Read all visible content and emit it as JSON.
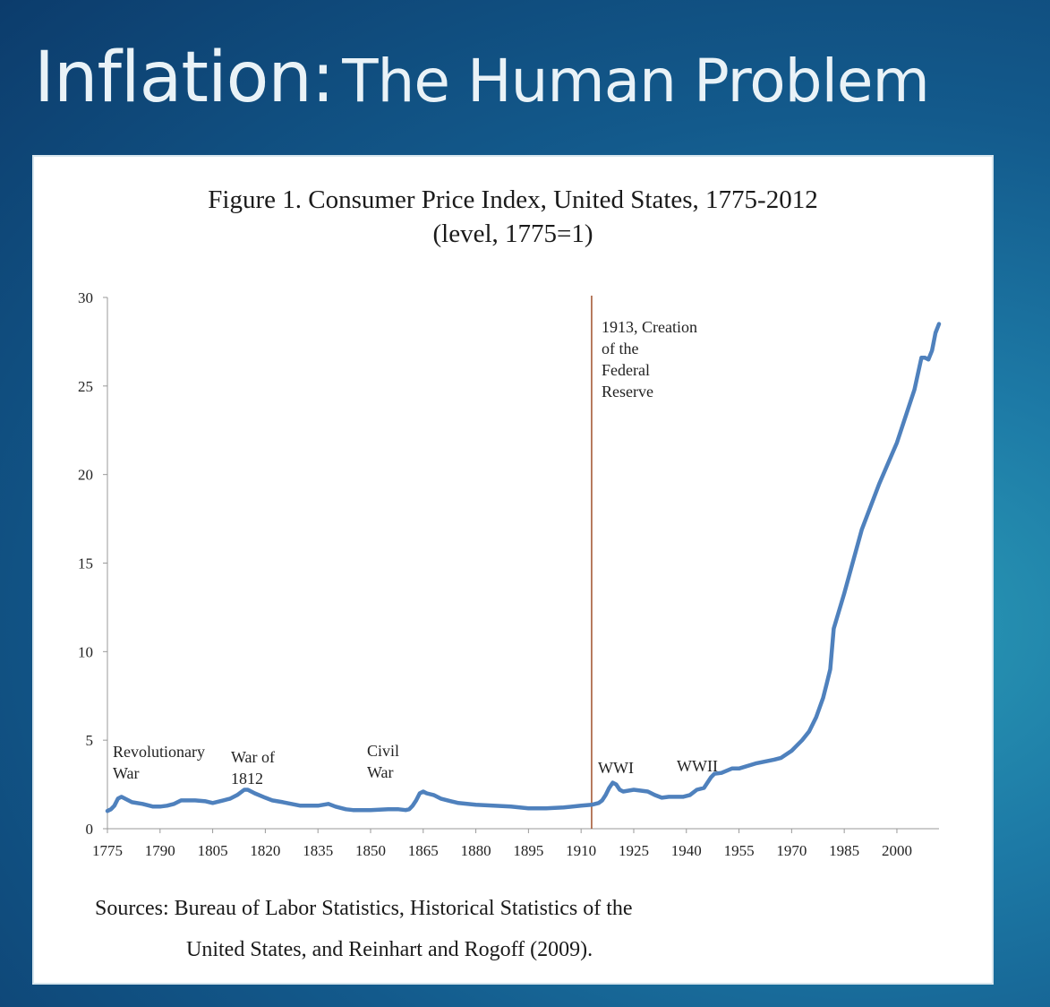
{
  "slide": {
    "title_main": "Inflation:",
    "title_sub": "The Human Problem"
  },
  "figure": {
    "title_line1": "Figure 1. Consumer Price Index, United States, 1775-2012",
    "title_line2": "(level, 1775=1)",
    "source_line1": "Sources: Bureau of Labor Statistics, Historical Statistics of the",
    "source_line2": "United States, and Reinhart and Rogoff (2009)."
  },
  "colors": {
    "background_dark": "#0c3c6c",
    "background_light": "#2a9bb6",
    "series_line": "#4f81bd",
    "reference_line": "#a0522d",
    "axis": "#999999"
  },
  "chart_data": {
    "type": "line",
    "title": "Figure 1. Consumer Price Index, United States, 1775-2012",
    "subtitle": "(level, 1775=1)",
    "xlabel": "",
    "ylabel": "",
    "xlim": [
      1775,
      2012
    ],
    "ylim": [
      0,
      30
    ],
    "x_ticks": [
      1775,
      1790,
      1805,
      1820,
      1835,
      1850,
      1865,
      1880,
      1895,
      1910,
      1925,
      1940,
      1955,
      1970,
      1985,
      2000
    ],
    "y_ticks": [
      0,
      5,
      10,
      15,
      20,
      25,
      30
    ],
    "grid": false,
    "legend": "none",
    "series": [
      {
        "x": [
          1775,
          1776,
          1777,
          1778,
          1779,
          1780,
          1782,
          1785,
          1788,
          1790,
          1792,
          1794,
          1796,
          1798,
          1800,
          1803,
          1805,
          1808,
          1810,
          1812,
          1814,
          1815,
          1817,
          1820,
          1822,
          1825,
          1830,
          1835,
          1838,
          1840,
          1843,
          1845,
          1850,
          1855,
          1858,
          1860,
          1861,
          1862,
          1863,
          1864,
          1865,
          1866,
          1868,
          1870,
          1873,
          1875,
          1880,
          1885,
          1890,
          1895,
          1900,
          1905,
          1910,
          1913,
          1915,
          1916,
          1917,
          1918,
          1919,
          1920,
          1921,
          1922,
          1925,
          1929,
          1931,
          1933,
          1935,
          1939,
          1941,
          1943,
          1945,
          1947,
          1948,
          1950,
          1953,
          1955,
          1960,
          1965,
          1967,
          1970,
          1973,
          1975,
          1977,
          1979,
          1980,
          1981,
          1982,
          1985,
          1990,
          1995,
          2000,
          2005,
          2007,
          2008,
          2009,
          2010,
          2011,
          2012
        ],
        "values": [
          1.0,
          1.1,
          1.3,
          1.7,
          1.8,
          1.7,
          1.5,
          1.4,
          1.25,
          1.25,
          1.3,
          1.4,
          1.6,
          1.6,
          1.6,
          1.55,
          1.45,
          1.6,
          1.7,
          1.9,
          2.2,
          2.2,
          2.0,
          1.75,
          1.6,
          1.5,
          1.3,
          1.3,
          1.4,
          1.25,
          1.1,
          1.05,
          1.05,
          1.1,
          1.1,
          1.05,
          1.1,
          1.3,
          1.6,
          2.0,
          2.1,
          2.0,
          1.9,
          1.7,
          1.55,
          1.45,
          1.35,
          1.3,
          1.25,
          1.15,
          1.15,
          1.2,
          1.3,
          1.35,
          1.45,
          1.6,
          1.9,
          2.3,
          2.6,
          2.5,
          2.2,
          2.1,
          2.2,
          2.1,
          1.9,
          1.75,
          1.8,
          1.8,
          1.9,
          2.2,
          2.3,
          2.9,
          3.1,
          3.15,
          3.4,
          3.4,
          3.7,
          3.9,
          4.0,
          4.4,
          5.0,
          5.5,
          6.3,
          7.4,
          8.2,
          9.0,
          11.3,
          13.3,
          16.9,
          19.5,
          21.8,
          24.8,
          26.6,
          26.6,
          26.5,
          27.0,
          28.0,
          28.5
        ]
      }
    ],
    "annotations": [
      {
        "text": [
          "Revolutionary",
          "War"
        ]
      },
      {
        "text": [
          "War of",
          "1812"
        ]
      },
      {
        "text": [
          "Civil",
          "War"
        ]
      },
      {
        "text": [
          "1913, Creation",
          "of the",
          "Federal",
          "Reserve"
        ]
      },
      {
        "text": [
          "WWI"
        ]
      },
      {
        "text": [
          "WWII"
        ]
      }
    ],
    "reference_lines": [
      {
        "x": 1913
      }
    ]
  }
}
